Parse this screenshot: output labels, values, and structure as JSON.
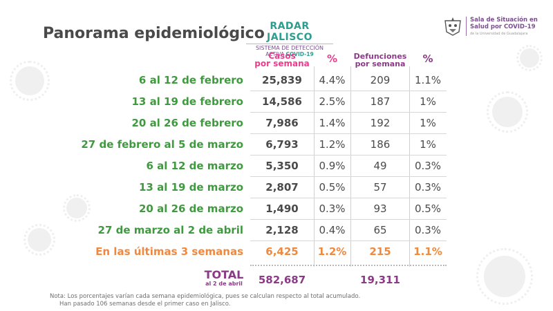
{
  "title": "Panorama epidemiológico",
  "radar": {
    "name": "RADAR JALISCO",
    "line1": "SISTEMA DE DETECCIÓN",
    "line2a": "ACTIVA",
    "line2b": "COVID-19"
  },
  "sala": {
    "line1": "Sala de Situación en",
    "line2": "Salud por COVID-19",
    "sub": "de la Universidad de Guadalajara"
  },
  "headers": {
    "cases": "Casos",
    "cases_sub": "por semana",
    "pct": "%",
    "deaths": "Defunciones",
    "deaths_sub": "por semana",
    "pct2": "%"
  },
  "rows": [
    {
      "label": "6 al 12 de febrero",
      "cases": "25,839",
      "cases_pct": "4.4%",
      "deaths": "209",
      "deaths_pct": "1.1%"
    },
    {
      "label": "13 al 19 de febrero",
      "cases": "14,586",
      "cases_pct": "2.5%",
      "deaths": "187",
      "deaths_pct": "1%"
    },
    {
      "label": "20 al 26 de febrero",
      "cases": "7,986",
      "cases_pct": "1.4%",
      "deaths": "192",
      "deaths_pct": "1%"
    },
    {
      "label": "27 de febrero al 5 de marzo",
      "cases": "6,793",
      "cases_pct": "1.2%",
      "deaths": "186",
      "deaths_pct": "1%"
    },
    {
      "label": "6 al 12 de marzo",
      "cases": "5,350",
      "cases_pct": "0.9%",
      "deaths": "49",
      "deaths_pct": "0.3%"
    },
    {
      "label": "13 al 19 de marzo",
      "cases": "2,807",
      "cases_pct": "0.5%",
      "deaths": "57",
      "deaths_pct": "0.3%"
    },
    {
      "label": "20 al 26 de marzo",
      "cases": "1,490",
      "cases_pct": "0.3%",
      "deaths": "93",
      "deaths_pct": "0.5%"
    },
    {
      "label": "27 de marzo al 2 de abril",
      "cases": "2,128",
      "cases_pct": "0.4%",
      "deaths": "65",
      "deaths_pct": "0.3%"
    }
  ],
  "summary": {
    "label": "En las últimas 3 semanas",
    "cases": "6,425",
    "cases_pct": "1.2%",
    "deaths": "215",
    "deaths_pct": "1.1%"
  },
  "total": {
    "label": "TOTAL",
    "sub": "al 2 de abril",
    "cases": "582,687",
    "deaths": "19,311"
  },
  "note": {
    "line1": "Nota: Los porcentajes varían cada semana epidemiológica, pues se calculan respecto al total acumulado.",
    "line2": "Han pasado 106 semanas desde el primer caso en Jalisco."
  },
  "colors": {
    "green": "#3f9a3f",
    "orange": "#f0883e",
    "pink": "#e83e8c",
    "purple": "#8b3a86",
    "gray": "#4a4a4a"
  }
}
